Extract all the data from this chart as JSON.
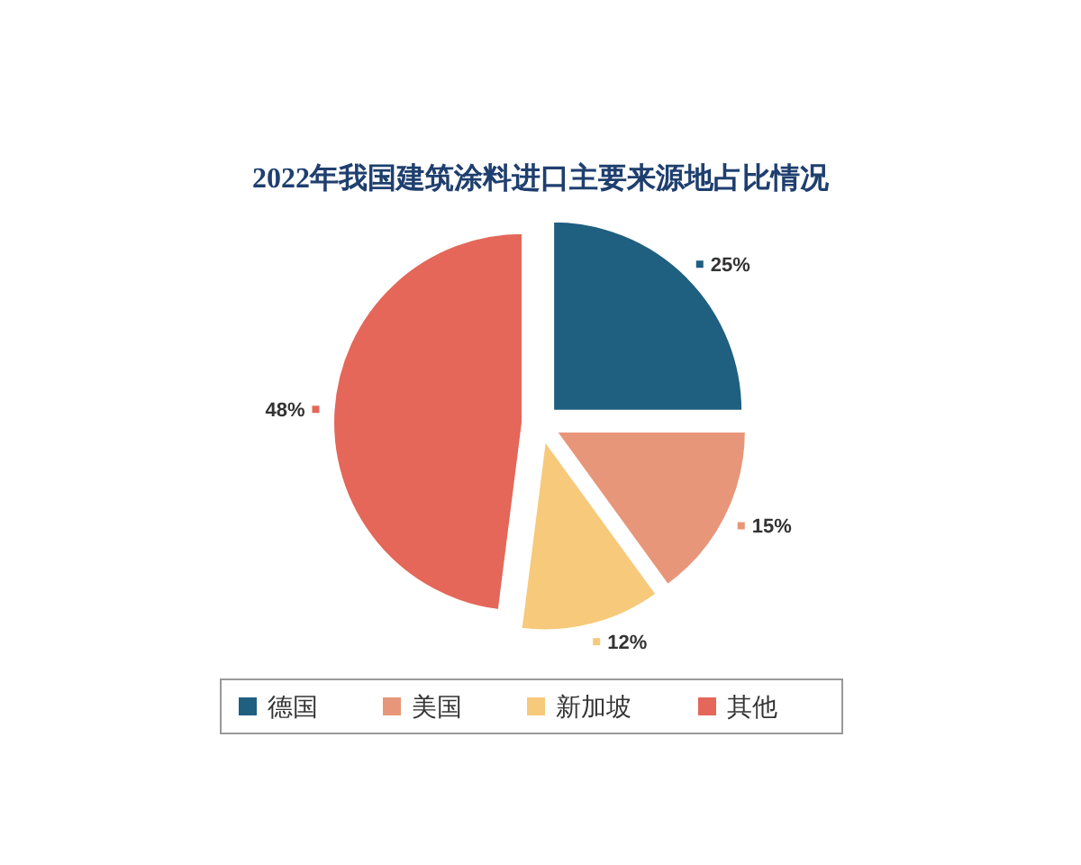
{
  "chart_data": {
    "type": "pie",
    "title": "2022年我国建筑涂料进口主要来源地占比情况",
    "categories": [
      "德国",
      "美国",
      "新加坡",
      "其他"
    ],
    "values": [
      25,
      15,
      12,
      48
    ],
    "colors": [
      "#1f5f80",
      "#e8967a",
      "#f7c97a",
      "#e4675a"
    ],
    "value_labels": [
      "25%",
      "15%",
      "12%",
      "48%"
    ],
    "legend": "bottom"
  }
}
